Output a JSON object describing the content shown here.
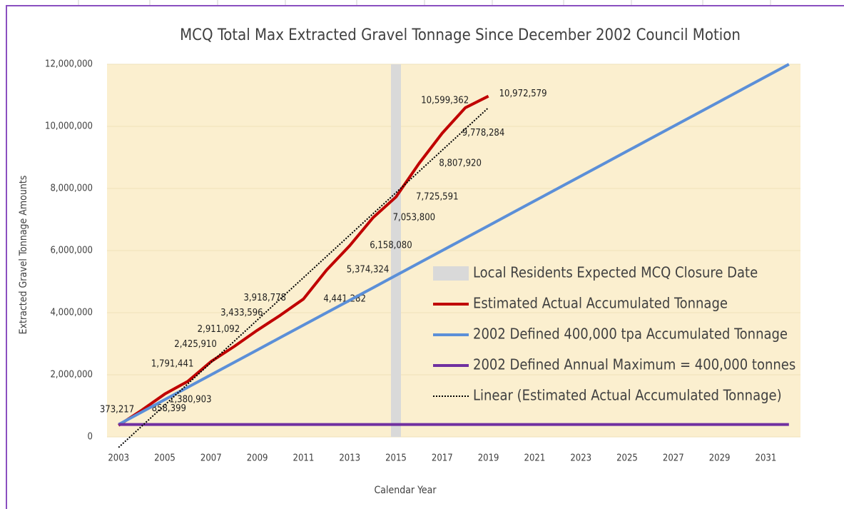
{
  "chart_data": {
    "type": "line",
    "title": "MCQ Total Max Extracted Gravel Tonnage Since December 2002 Council Motion",
    "x_label": "Calendar Year",
    "y_label": "Extracted Gravel Tonnage Amounts",
    "xlim": [
      2002.5,
      2032.5
    ],
    "xticks": [
      2003,
      2005,
      2007,
      2009,
      2011,
      2013,
      2015,
      2017,
      2019,
      2021,
      2023,
      2025,
      2027,
      2029,
      2031
    ],
    "ylim": [
      0,
      12000000
    ],
    "yticks": [
      {
        "value": 0,
        "label": "0"
      },
      {
        "value": 2000000,
        "label": "2,000,000"
      },
      {
        "value": 4000000,
        "label": "4,000,000"
      },
      {
        "value": 6000000,
        "label": "6,000,000"
      },
      {
        "value": 8000000,
        "label": "8,000,000"
      },
      {
        "value": 10000000,
        "label": "10,000,000"
      },
      {
        "value": 12000000,
        "label": "12,000,000"
      }
    ],
    "grid": true,
    "legend": "right",
    "series": [
      {
        "name": "Local Residents Expected MCQ Closure Date",
        "kind": "bar",
        "color": "#d9d9d9",
        "x": [
          2015
        ],
        "values": [
          12000000
        ]
      },
      {
        "name": "Estimated Actual Accumulated Tonnage",
        "kind": "line",
        "color": "#c00000",
        "x": [
          2003,
          2004,
          2005,
          2006,
          2007,
          2008,
          2009,
          2010,
          2011,
          2012,
          2013,
          2014,
          2015,
          2016,
          2017,
          2018,
          2019
        ],
        "values": [
          373217,
          858399,
          1380903,
          1791441,
          2425910,
          2911092,
          3433596,
          3918778,
          4441282,
          5374324,
          6158080,
          7053800,
          7725591,
          8807920,
          9778284,
          10599362,
          10972579
        ],
        "value_labels": [
          "373,217",
          "858,399",
          "1,380,903",
          "1,791,441",
          "2,425,910",
          "2,911,092",
          "3,433,596",
          "3,918,778",
          "4,441,282",
          "5,374,324",
          "6,158,080",
          "7,053,800",
          "7,725,591",
          "8,807,920",
          "9,778,284",
          "10,599,362",
          "10,972,579"
        ]
      },
      {
        "name": "2002 Defined 400,000 tpa Accumulated Tonnage",
        "kind": "line",
        "color": "#5b8fd8",
        "x": [
          2003,
          2004,
          2005,
          2006,
          2007,
          2008,
          2009,
          2010,
          2011,
          2012,
          2013,
          2014,
          2015,
          2016,
          2017,
          2018,
          2019,
          2020,
          2021,
          2022,
          2023,
          2024,
          2025,
          2026,
          2027,
          2028,
          2029,
          2030,
          2031,
          2032
        ],
        "values": [
          400000,
          800000,
          1200000,
          1600000,
          2000000,
          2400000,
          2800000,
          3200000,
          3600000,
          4000000,
          4400000,
          4800000,
          5200000,
          5600000,
          6000000,
          6400000,
          6800000,
          7200000,
          7600000,
          8000000,
          8400000,
          8800000,
          9200000,
          9600000,
          10000000,
          10400000,
          10800000,
          11200000,
          11600000,
          12000000
        ]
      },
      {
        "name": "2002 Defined Annual Maximum = 400,000 tonnes",
        "kind": "line",
        "color": "#7030a0",
        "x": [
          2003,
          2032
        ],
        "values": [
          400000,
          400000
        ]
      },
      {
        "name": "Linear (Estimated Actual Accumulated Tonnage)",
        "kind": "dotted",
        "color": "#000000",
        "x": [
          2003,
          2019
        ],
        "values": [
          -340000,
          10600000
        ]
      }
    ]
  }
}
